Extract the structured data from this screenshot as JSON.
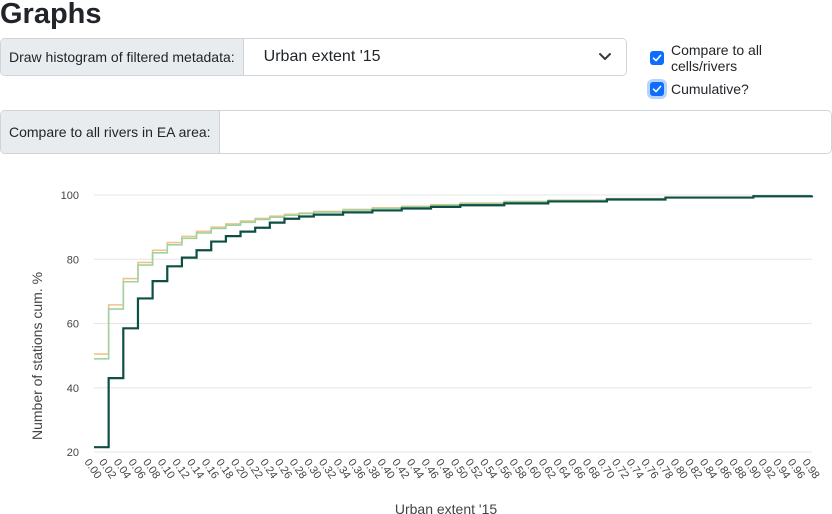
{
  "page": {
    "title": "Graphs"
  },
  "controls": {
    "histogram_label": "Draw histogram of filtered metadata:",
    "histogram_value": "Urban extent '15",
    "compare_all_label": "Compare to all cells/rivers",
    "cumulative_label": "Cumulative?",
    "rivers_label": "Compare to all rivers in EA area:",
    "rivers_value": ""
  },
  "colors": {
    "accent": "#0d6efd",
    "series_main": "#0d4f44",
    "series_compare_a": "#f0c38a",
    "series_compare_b": "#9ed3a0"
  },
  "chart_data": {
    "type": "line",
    "step": true,
    "xlabel": "Urban extent '15",
    "ylabel": "Number of stations cum. %",
    "ylim": [
      20,
      100
    ],
    "xlim": [
      0,
      0.98
    ],
    "yticks": [
      "20",
      "40",
      "60",
      "80",
      "100"
    ],
    "xticks": [
      "0.00",
      "0.02",
      "0.04",
      "0.06",
      "0.08",
      "0.10",
      "0.12",
      "0.14",
      "0.16",
      "0.18",
      "0.20",
      "0.22",
      "0.24",
      "0.26",
      "0.28",
      "0.30",
      "0.32",
      "0.34",
      "0.36",
      "0.38",
      "0.40",
      "0.42",
      "0.44",
      "0.46",
      "0.48",
      "0.50",
      "0.52",
      "0.54",
      "0.56",
      "0.58",
      "0.60",
      "0.62",
      "0.64",
      "0.66",
      "0.68",
      "0.70",
      "0.72",
      "0.74",
      "0.76",
      "0.78",
      "0.80",
      "0.82",
      "0.84",
      "0.86",
      "0.88",
      "0.90",
      "0.92",
      "0.94",
      "0.96",
      "0.98"
    ],
    "grid": true,
    "series": [
      {
        "x": [
          0.0,
          0.02,
          0.04,
          0.06,
          0.08,
          0.1,
          0.12,
          0.14,
          0.16,
          0.18,
          0.2,
          0.22,
          0.24,
          0.26,
          0.28,
          0.3,
          0.34,
          0.38,
          0.42,
          0.46,
          0.5,
          0.56,
          0.62,
          0.7,
          0.78,
          0.9,
          0.98
        ],
        "values": [
          50.5,
          65.8,
          74.0,
          79.0,
          82.8,
          85.2,
          87.1,
          88.7,
          90.0,
          91.0,
          91.9,
          92.7,
          93.4,
          94.0,
          94.4,
          94.9,
          95.5,
          96.0,
          96.5,
          97.0,
          97.5,
          98.0,
          98.4,
          98.9,
          99.3,
          99.6,
          99.8
        ]
      },
      {
        "x": [
          0.0,
          0.02,
          0.04,
          0.06,
          0.08,
          0.1,
          0.12,
          0.14,
          0.16,
          0.18,
          0.2,
          0.22,
          0.24,
          0.26,
          0.28,
          0.3,
          0.34,
          0.38,
          0.42,
          0.46,
          0.5,
          0.56,
          0.62,
          0.7,
          0.78,
          0.9,
          0.98
        ],
        "values": [
          49.0,
          64.5,
          73.0,
          78.2,
          82.0,
          84.5,
          86.5,
          88.2,
          89.6,
          90.6,
          91.5,
          92.4,
          93.1,
          93.7,
          94.2,
          94.7,
          95.3,
          95.8,
          96.3,
          96.8,
          97.3,
          97.9,
          98.3,
          98.8,
          99.2,
          99.6,
          99.8
        ]
      },
      {
        "x": [
          0.0,
          0.02,
          0.04,
          0.06,
          0.08,
          0.1,
          0.12,
          0.14,
          0.16,
          0.18,
          0.2,
          0.22,
          0.24,
          0.26,
          0.28,
          0.3,
          0.34,
          0.38,
          0.42,
          0.46,
          0.5,
          0.56,
          0.62,
          0.7,
          0.78,
          0.9,
          0.98
        ],
        "values": [
          21.5,
          43.0,
          58.5,
          67.8,
          73.2,
          77.8,
          80.5,
          82.8,
          85.5,
          87.2,
          88.6,
          89.8,
          91.4,
          92.6,
          93.3,
          93.9,
          94.6,
          95.2,
          95.8,
          96.3,
          96.8,
          97.4,
          98.0,
          98.6,
          99.2,
          99.6,
          99.8
        ]
      }
    ]
  }
}
